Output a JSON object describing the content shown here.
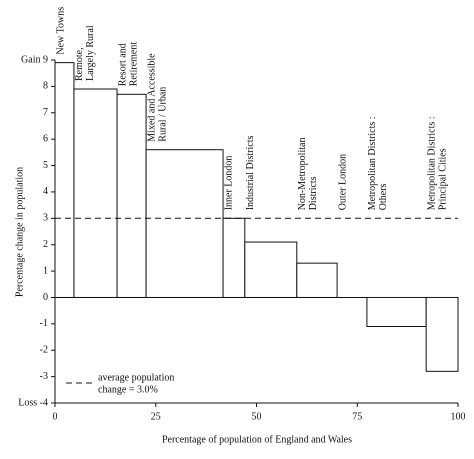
{
  "chart_data": {
    "type": "variable-width-bar",
    "ylabel": "Percentage change in population",
    "xlabel": "Percentage of population of England and Wales",
    "categories": [
      [
        "New Towns"
      ],
      [
        "Remote,",
        "Largely Rural"
      ],
      [
        "Resort and",
        "Retirement"
      ],
      [
        "Mixed and Accessible",
        "Rural / Urban"
      ],
      [
        "Inner London"
      ],
      [
        "Industrial Districts"
      ],
      [
        "Non-Metropolitan",
        "Districts"
      ],
      [
        "Outer London"
      ],
      [
        "Metropolitan Districts :",
        "Others"
      ],
      [
        "Metropolitan Districts :",
        "Principal Cities"
      ]
    ],
    "bins": [
      0,
      4.7,
      15.4,
      22.6,
      41.7,
      47.1,
      60,
      70,
      77.4,
      92.1,
      100
    ],
    "values": [
      8.9,
      7.9,
      7.7,
      5.6,
      3.0,
      2.1,
      1.3,
      0,
      -1.1,
      -2.8
    ],
    "color": "#ffffff",
    "average": 3.0,
    "legend": [
      "average population",
      "change = 3.0%"
    ],
    "xlim": [
      0,
      100
    ],
    "xticks": [
      0,
      25,
      50,
      75,
      100
    ],
    "ylim": [
      -4,
      9
    ],
    "yticks": [
      {
        "value": 9,
        "label": "Gain 9"
      },
      8,
      7,
      6,
      5,
      4,
      3,
      2,
      1,
      0,
      -1,
      -2,
      -3,
      {
        "value": -4,
        "label": "Loss -4"
      }
    ]
  }
}
